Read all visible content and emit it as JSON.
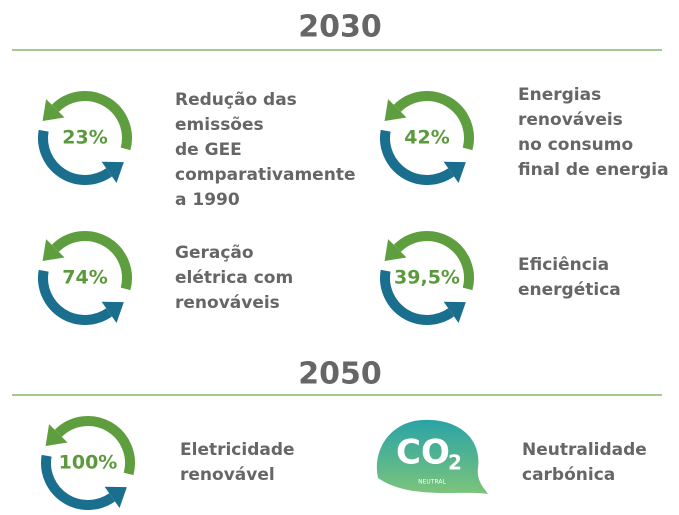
{
  "sections": [
    {
      "title": "2030",
      "items": [
        {
          "value": "23%",
          "lines": [
            "Redução das",
            "emissões",
            "de GEE",
            "comparativamente",
            "a 1990"
          ]
        },
        {
          "value": "42%",
          "lines": [
            "Energias",
            "renováveis",
            "no consumo",
            "final de energia"
          ]
        },
        {
          "value": "74%",
          "lines": [
            "Geração",
            "elétrica com",
            "renováveis"
          ]
        },
        {
          "value": "39,5%",
          "lines": [
            "Eficiência",
            "energética"
          ]
        }
      ]
    },
    {
      "title": "2050",
      "items": [
        {
          "value": "100%",
          "lines": [
            "Eletricidade",
            "renovável"
          ]
        },
        {
          "co2": {
            "label": "CO",
            "sub": "2",
            "badge": "NEUTRAL"
          },
          "lines": [
            "Neutralidade",
            "carbónica"
          ]
        }
      ]
    }
  ]
}
